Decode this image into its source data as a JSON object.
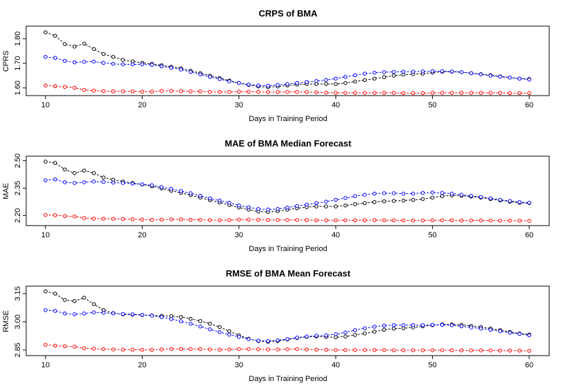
{
  "chart_data": [
    {
      "type": "line",
      "title": "CRPS of BMA",
      "xlabel": "Days in Training Period",
      "ylabel": "CPRS",
      "xlim": [
        10,
        60
      ],
      "ylim": [
        1.58,
        1.84
      ],
      "x_ticks": [
        10,
        20,
        30,
        40,
        50,
        60
      ],
      "y_ticks": [
        1.6,
        1.7,
        1.8
      ],
      "y_tick_labels": [
        "1.60",
        "1.70",
        "1.80"
      ],
      "marker": "open-circle",
      "line_style": "dashed",
      "grid": false,
      "x": [
        10,
        11,
        12,
        13,
        14,
        15,
        16,
        17,
        18,
        19,
        20,
        21,
        22,
        23,
        24,
        25,
        26,
        27,
        28,
        29,
        30,
        31,
        32,
        33,
        34,
        35,
        36,
        37,
        38,
        39,
        40,
        41,
        42,
        43,
        44,
        45,
        46,
        47,
        48,
        49,
        50,
        51,
        52,
        53,
        54,
        55,
        56,
        57,
        58,
        59,
        60
      ],
      "series": [
        {
          "color": "#000000",
          "values": [
            1.826,
            1.812,
            1.778,
            1.768,
            1.78,
            1.758,
            1.738,
            1.726,
            1.714,
            1.708,
            1.702,
            1.698,
            1.692,
            1.686,
            1.68,
            1.67,
            1.66,
            1.65,
            1.64,
            1.63,
            1.62,
            1.612,
            1.606,
            1.603,
            1.606,
            1.61,
            1.614,
            1.616,
            1.616,
            1.616,
            1.616,
            1.62,
            1.626,
            1.632,
            1.638,
            1.644,
            1.65,
            1.654,
            1.656,
            1.658,
            1.662,
            1.666,
            1.666,
            1.664,
            1.66,
            1.656,
            1.652,
            1.647,
            1.642,
            1.638,
            1.636
          ]
        },
        {
          "color": "#0000ff",
          "values": [
            1.726,
            1.722,
            1.71,
            1.704,
            1.706,
            1.707,
            1.702,
            1.698,
            1.696,
            1.696,
            1.696,
            1.694,
            1.688,
            1.682,
            1.675,
            1.665,
            1.655,
            1.645,
            1.636,
            1.627,
            1.62,
            1.614,
            1.61,
            1.609,
            1.612,
            1.616,
            1.62,
            1.624,
            1.628,
            1.632,
            1.638,
            1.645,
            1.652,
            1.658,
            1.662,
            1.664,
            1.665,
            1.666,
            1.666,
            1.667,
            1.668,
            1.668,
            1.667,
            1.664,
            1.66,
            1.655,
            1.65,
            1.646,
            1.642,
            1.638,
            1.634
          ]
        },
        {
          "color": "#ff0000",
          "values": [
            1.61,
            1.607,
            1.604,
            1.601,
            1.592,
            1.589,
            1.587,
            1.586,
            1.586,
            1.586,
            1.585,
            1.585,
            1.588,
            1.588,
            1.587,
            1.586,
            1.586,
            1.584,
            1.584,
            1.584,
            1.585,
            1.585,
            1.584,
            1.583,
            1.583,
            1.584,
            1.584,
            1.583,
            1.582,
            1.581,
            1.58,
            1.58,
            1.58,
            1.58,
            1.58,
            1.58,
            1.58,
            1.579,
            1.579,
            1.579,
            1.58,
            1.58,
            1.58,
            1.58,
            1.58,
            1.58,
            1.58,
            1.58,
            1.579,
            1.579,
            1.579
          ]
        }
      ]
    },
    {
      "type": "line",
      "title": "MAE of BMA Median Forecast",
      "xlabel": "Days in Training Period",
      "ylabel": "MAE",
      "xlim": [
        10,
        60
      ],
      "ylim": [
        2.16,
        2.51
      ],
      "x_ticks": [
        10,
        20,
        30,
        40,
        50,
        60
      ],
      "y_ticks": [
        2.2,
        2.35,
        2.5
      ],
      "y_tick_labels": [
        "2.20",
        "2.35",
        "2.50"
      ],
      "marker": "open-circle",
      "line_style": "dashed",
      "grid": false,
      "x": [
        10,
        11,
        12,
        13,
        14,
        15,
        16,
        17,
        18,
        19,
        20,
        21,
        22,
        23,
        24,
        25,
        26,
        27,
        28,
        29,
        30,
        31,
        32,
        33,
        34,
        35,
        36,
        37,
        38,
        39,
        40,
        41,
        42,
        43,
        44,
        45,
        46,
        47,
        48,
        49,
        50,
        51,
        52,
        53,
        54,
        55,
        56,
        57,
        58,
        59,
        60
      ],
      "series": [
        {
          "color": "#000000",
          "values": [
            2.495,
            2.488,
            2.452,
            2.432,
            2.446,
            2.432,
            2.408,
            2.396,
            2.386,
            2.378,
            2.37,
            2.36,
            2.348,
            2.336,
            2.324,
            2.312,
            2.298,
            2.284,
            2.272,
            2.258,
            2.244,
            2.232,
            2.222,
            2.22,
            2.224,
            2.232,
            2.24,
            2.246,
            2.25,
            2.25,
            2.25,
            2.255,
            2.262,
            2.268,
            2.274,
            2.278,
            2.28,
            2.282,
            2.286,
            2.29,
            2.298,
            2.306,
            2.31,
            2.308,
            2.304,
            2.298,
            2.29,
            2.283,
            2.276,
            2.27,
            2.268
          ]
        },
        {
          "color": "#0000ff",
          "values": [
            2.393,
            2.398,
            2.382,
            2.378,
            2.382,
            2.386,
            2.384,
            2.38,
            2.378,
            2.375,
            2.371,
            2.366,
            2.356,
            2.346,
            2.334,
            2.322,
            2.308,
            2.294,
            2.282,
            2.27,
            2.255,
            2.245,
            2.236,
            2.233,
            2.236,
            2.244,
            2.252,
            2.26,
            2.268,
            2.276,
            2.286,
            2.296,
            2.306,
            2.314,
            2.32,
            2.322,
            2.322,
            2.32,
            2.32,
            2.324,
            2.326,
            2.324,
            2.32,
            2.314,
            2.308,
            2.302,
            2.294,
            2.286,
            2.28,
            2.274,
            2.27
          ]
        },
        {
          "color": "#ff0000",
          "values": [
            2.203,
            2.202,
            2.197,
            2.195,
            2.186,
            2.183,
            2.183,
            2.182,
            2.181,
            2.18,
            2.178,
            2.177,
            2.178,
            2.179,
            2.179,
            2.177,
            2.177,
            2.175,
            2.174,
            2.175,
            2.178,
            2.178,
            2.177,
            2.176,
            2.176,
            2.176,
            2.176,
            2.175,
            2.174,
            2.174,
            2.174,
            2.174,
            2.174,
            2.174,
            2.175,
            2.174,
            2.174,
            2.173,
            2.173,
            2.173,
            2.174,
            2.174,
            2.174,
            2.173,
            2.173,
            2.173,
            2.173,
            2.172,
            2.172,
            2.172,
            2.171
          ]
        }
      ]
    },
    {
      "type": "line",
      "title": "RMSE of BMA Mean Forecast",
      "xlabel": "Days in Training Period",
      "ylabel": "RMSE",
      "xlim": [
        10,
        60
      ],
      "ylim": [
        2.835,
        3.175
      ],
      "x_ticks": [
        10,
        20,
        30,
        40,
        50,
        60
      ],
      "y_ticks": [
        2.85,
        3.0,
        3.15
      ],
      "y_tick_labels": [
        "2.85",
        "3.00",
        "3.15"
      ],
      "marker": "open-circle",
      "line_style": "dashed",
      "grid": false,
      "x": [
        10,
        11,
        12,
        13,
        14,
        15,
        16,
        17,
        18,
        19,
        20,
        21,
        22,
        23,
        24,
        25,
        26,
        27,
        28,
        29,
        30,
        31,
        32,
        33,
        34,
        35,
        36,
        37,
        38,
        39,
        40,
        41,
        42,
        43,
        44,
        45,
        46,
        47,
        48,
        49,
        50,
        51,
        52,
        53,
        54,
        55,
        56,
        57,
        58,
        59,
        60
      ],
      "series": [
        {
          "color": "#000000",
          "values": [
            3.162,
            3.15,
            3.116,
            3.11,
            3.128,
            3.094,
            3.062,
            3.046,
            3.04,
            3.038,
            3.036,
            3.034,
            3.032,
            3.03,
            3.026,
            3.016,
            3.004,
            2.99,
            2.972,
            2.95,
            2.928,
            2.91,
            2.898,
            2.894,
            2.898,
            2.906,
            2.914,
            2.92,
            2.922,
            2.92,
            2.918,
            2.922,
            2.93,
            2.938,
            2.948,
            2.958,
            2.964,
            2.966,
            2.97,
            2.976,
            2.982,
            2.986,
            2.986,
            2.984,
            2.978,
            2.972,
            2.964,
            2.956,
            2.946,
            2.938,
            2.932
          ]
        },
        {
          "color": "#0000ff",
          "values": [
            3.062,
            3.058,
            3.044,
            3.04,
            3.044,
            3.05,
            3.048,
            3.045,
            3.042,
            3.04,
            3.037,
            3.033,
            3.025,
            3.015,
            3.003,
            2.99,
            2.975,
            2.96,
            2.945,
            2.932,
            2.92,
            2.908,
            2.9,
            2.898,
            2.902,
            2.908,
            2.916,
            2.922,
            2.926,
            2.928,
            2.934,
            2.944,
            2.956,
            2.966,
            2.974,
            2.98,
            2.982,
            2.982,
            2.982,
            2.982,
            2.984,
            2.984,
            2.982,
            2.976,
            2.97,
            2.964,
            2.958,
            2.95,
            2.942,
            2.936,
            2.928
          ]
        },
        {
          "color": "#ff0000",
          "values": [
            2.878,
            2.873,
            2.87,
            2.868,
            2.859,
            2.857,
            2.855,
            2.853,
            2.852,
            2.852,
            2.851,
            2.851,
            2.853,
            2.856,
            2.856,
            2.855,
            2.855,
            2.853,
            2.852,
            2.853,
            2.855,
            2.855,
            2.854,
            2.853,
            2.853,
            2.854,
            2.855,
            2.853,
            2.852,
            2.851,
            2.85,
            2.85,
            2.85,
            2.85,
            2.85,
            2.85,
            2.849,
            2.849,
            2.849,
            2.849,
            2.849,
            2.849,
            2.849,
            2.848,
            2.848,
            2.848,
            2.848,
            2.847,
            2.847,
            2.847,
            2.846
          ]
        }
      ]
    }
  ]
}
